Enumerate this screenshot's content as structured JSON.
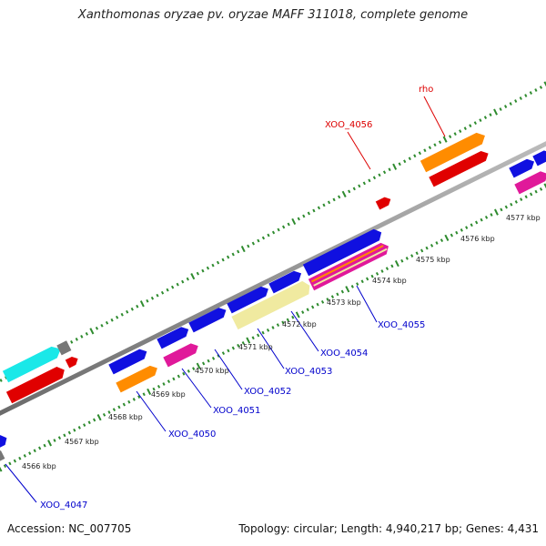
{
  "title": "Xanthomonas oryzae pv. oryzae MAFF 311018, complete genome",
  "footer": {
    "accession": "Accession: NC_007705",
    "summary": "Topology: circular; Length: 4,940,217 bp; Genes: 4,431"
  },
  "scale_labels": [
    "4566 kbp",
    "4567 kbp",
    "4568 kbp",
    "4569 kbp",
    "4570 kbp",
    "4571 kbp",
    "4572 kbp",
    "4573 kbp",
    "4574 kbp",
    "4575 kbp",
    "4576 kbp",
    "4577 kbp"
  ],
  "gene_labels": [
    {
      "text": "XOO_4047",
      "color": "#0000cc"
    },
    {
      "text": "XOO_4050",
      "color": "#0000cc"
    },
    {
      "text": "XOO_4051",
      "color": "#0000cc"
    },
    {
      "text": "XOO_4052",
      "color": "#0000cc"
    },
    {
      "text": "XOO_4053",
      "color": "#0000cc"
    },
    {
      "text": "XOO_4054",
      "color": "#0000cc"
    },
    {
      "text": "XOO_4055",
      "color": "#0000cc"
    },
    {
      "text": "XOO_4056",
      "color": "#dd0000"
    },
    {
      "text": "rho",
      "color": "#dd0000"
    }
  ],
  "colors": {
    "backbone": "#8c8c8c",
    "tick": "#2e8b2e",
    "cds_blue": "#1010e0",
    "cds_red": "#e00000",
    "cds_orange": "#ff8c00",
    "cds_magenta": "#e0199a",
    "cds_yellow": "#f0eaa0",
    "cds_cyan": "#1ae8e8",
    "cds_gray": "#777777"
  }
}
